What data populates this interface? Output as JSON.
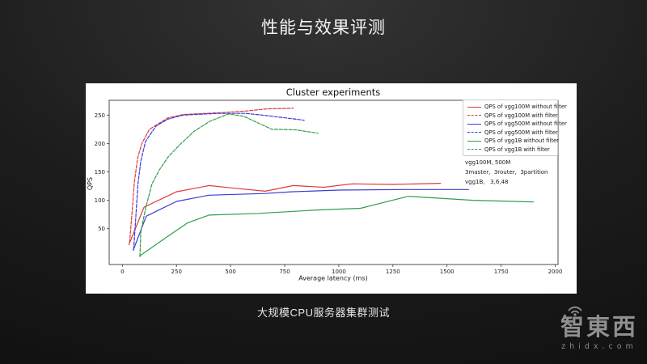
{
  "slide": {
    "title": "性能与效果评测",
    "caption": "大规模CPU服务器集群测试",
    "logo": {
      "brand": "智東西",
      "domain": "zhidx.com"
    }
  },
  "chart_data": {
    "type": "line",
    "title": "Cluster experiments",
    "xlabel": "Average latency (ms)",
    "ylabel": "QPS",
    "xlim": [
      -61,
      2013
    ],
    "ylim": [
      -13,
      276
    ],
    "xticks": [
      0,
      250,
      500,
      750,
      1000,
      1250,
      1500,
      1750,
      2000
    ],
    "yticks": [
      50,
      100,
      150,
      200,
      250
    ],
    "grid": false,
    "legend_position": "upper right",
    "annotation_lines": [
      "vgg100M, 500M",
      "3master,  3router,  3partition",
      "vgg1B,   3,6,48"
    ],
    "series": [
      {
        "name": "QPS of vgg100M without filter",
        "color": "#e03b3b",
        "style": "solid",
        "x": [
          30,
          100,
          250,
          400,
          500,
          660,
          790,
          930,
          1060,
          1250,
          1470
        ],
        "y": [
          22,
          88,
          115,
          126,
          122,
          116,
          126,
          123,
          129,
          128,
          130
        ]
      },
      {
        "name": "QPS of vgg100M with filter",
        "color": "#e03b3b",
        "style": "dashed",
        "x": [
          33,
          45,
          55,
          70,
          90,
          125,
          210,
          280,
          440,
          570,
          670,
          790
        ],
        "y": [
          25,
          80,
          130,
          174,
          200,
          225,
          245,
          251,
          254,
          257,
          261,
          262
        ]
      },
      {
        "name": "QPS of vgg500M without filter",
        "color": "#3b3bd6",
        "style": "solid",
        "x": [
          50,
          110,
          250,
          400,
          660,
          780,
          1000,
          1300,
          1600
        ],
        "y": [
          12,
          72,
          98,
          109,
          112,
          115,
          118,
          119,
          119
        ]
      },
      {
        "name": "QPS of vgg500M with filter",
        "color": "#3b3bd6",
        "style": "dashed",
        "x": [
          52,
          62,
          72,
          85,
          107,
          156,
          211,
          280,
          440,
          570,
          670,
          840
        ],
        "y": [
          13,
          70,
          129,
          169,
          204,
          231,
          243,
          250,
          253,
          253,
          249,
          241
        ]
      },
      {
        "name": "QPS of vgg1B without filter",
        "color": "#2f9e48",
        "style": "solid",
        "x": [
          80,
          200,
          300,
          400,
          630,
          900,
          1100,
          1320,
          1620,
          1900
        ],
        "y": [
          2,
          34,
          60,
          74,
          77,
          83,
          86,
          107,
          100,
          97
        ]
      },
      {
        "name": "QPS of vgg1B with filter",
        "color": "#2f9e48",
        "style": "dashed",
        "x": [
          81,
          85,
          107,
          137,
          170,
          211,
          263,
          330,
          404,
          490,
          560,
          690,
          800,
          904
        ],
        "y": [
          1,
          44,
          86,
          129,
          153,
          176,
          197,
          221,
          239,
          252,
          248,
          225,
          224,
          218
        ]
      }
    ]
  }
}
